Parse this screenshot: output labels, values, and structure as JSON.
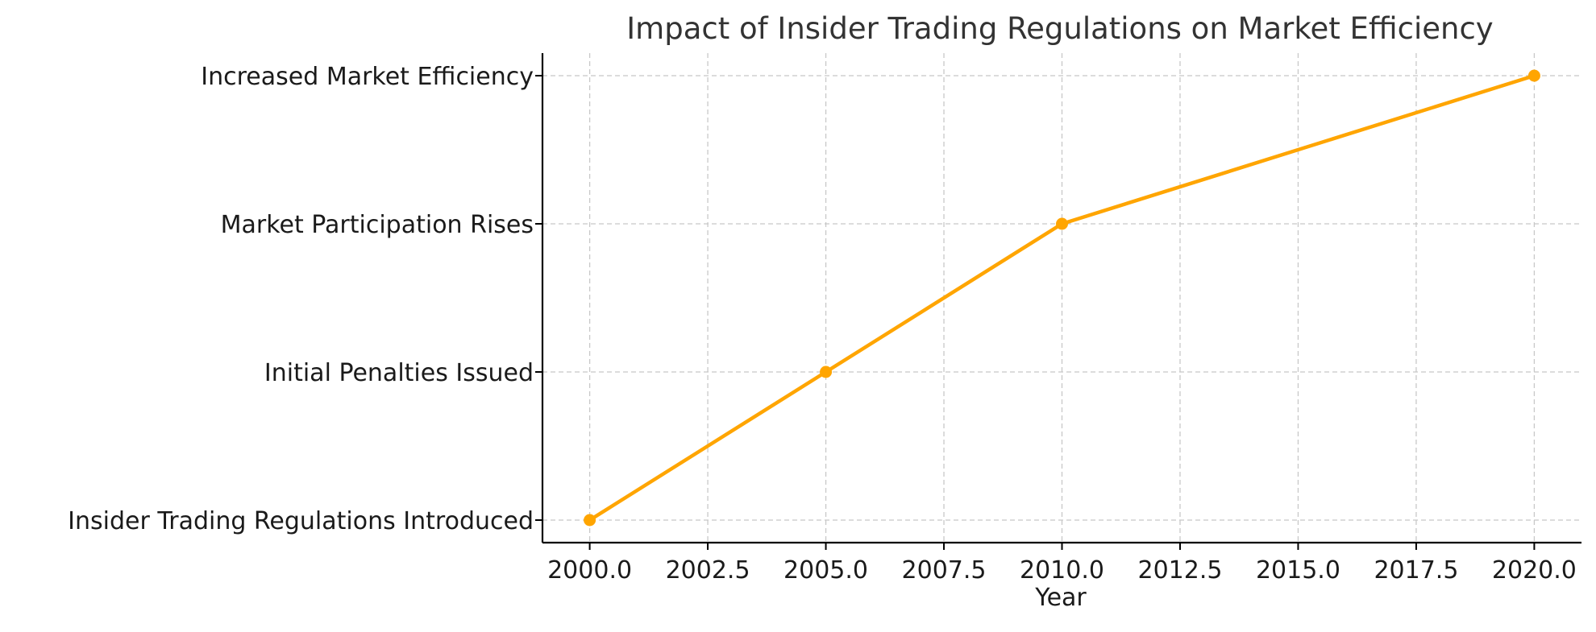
{
  "chart_data": {
    "type": "line",
    "title": "Impact of Insider Trading Regulations on Market Efficiency",
    "xlabel": "Year",
    "ylabel": "",
    "xlim": [
      1999,
      2021
    ],
    "x_ticks": [
      2000,
      2002.5,
      2005,
      2007.5,
      2010,
      2012.5,
      2015,
      2017.5,
      2020
    ],
    "x_tick_labels": [
      "2000.0",
      "2002.5",
      "2005.0",
      "2007.5",
      "2010.0",
      "2012.5",
      "2015.0",
      "2017.5",
      "2020.0"
    ],
    "y_categories": [
      "Insider Trading Regulations Introduced",
      "Initial Penalties Issued",
      "Market Participation Rises",
      "Increased Market Efficiency"
    ],
    "grid": true,
    "series": [
      {
        "color": "#FFA500",
        "points": [
          {
            "x": 2000,
            "y": "Insider Trading Regulations Introduced"
          },
          {
            "x": 2005,
            "y": "Initial Penalties Issued"
          },
          {
            "x": 2010,
            "y": "Market Participation Rises"
          },
          {
            "x": 2020,
            "y": "Increased Market Efficiency"
          }
        ]
      }
    ]
  }
}
